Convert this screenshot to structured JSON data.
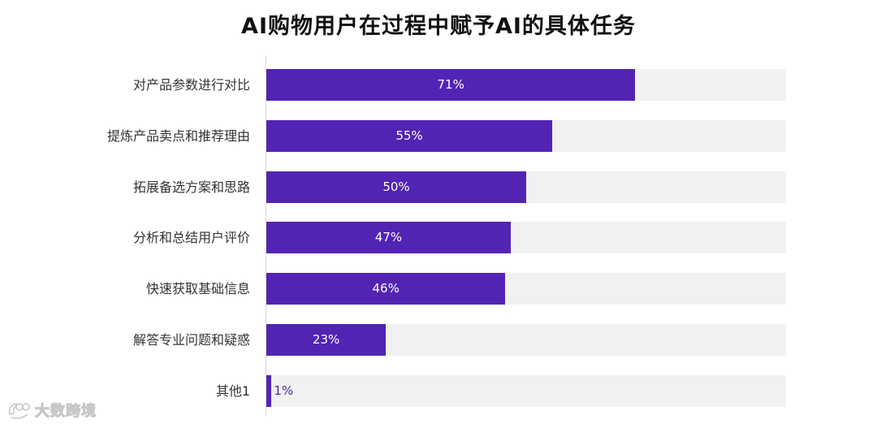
{
  "watermark": {
    "icon": "dashuju-logo-icon",
    "text": "大数跨境"
  },
  "chart_data": {
    "type": "bar",
    "orientation": "horizontal",
    "title": "AI购物用户在过程中赋予AI的具体任务",
    "categories": [
      "对产品参数进行对比",
      "提炼产品卖点和推荐理由",
      "拓展备选方案和思路",
      "分析和总结用户评价",
      "快速获取基础信息",
      "解答专业问题和疑惑",
      "其他1"
    ],
    "values": [
      71,
      55,
      50,
      47,
      46,
      23,
      1
    ],
    "value_labels": [
      "71%",
      "55%",
      "50%",
      "47%",
      "46%",
      "23%",
      "1%"
    ],
    "xlim": [
      0,
      100
    ],
    "grid": false,
    "colors": {
      "bar": "#5224b4",
      "track": "#f1f1f1"
    }
  }
}
